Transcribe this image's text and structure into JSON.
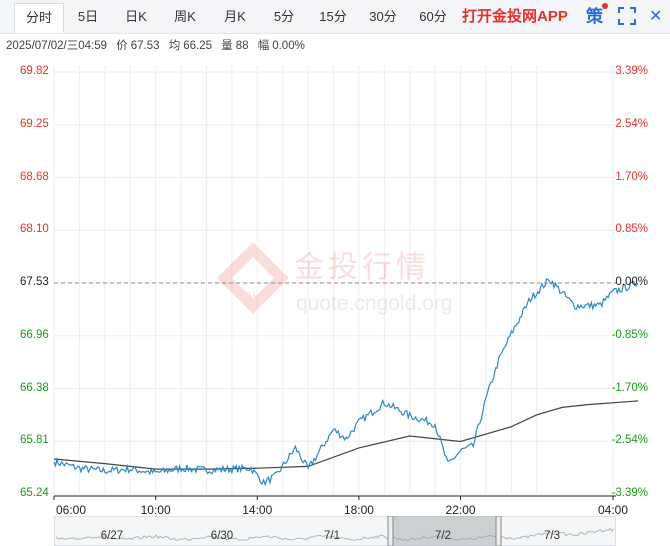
{
  "tabs": [
    {
      "label": "分时",
      "active": true
    },
    {
      "label": "5日"
    },
    {
      "label": "日K"
    },
    {
      "label": "周K"
    },
    {
      "label": "月K"
    },
    {
      "label": "5分"
    },
    {
      "label": "15分"
    },
    {
      "label": "30分"
    },
    {
      "label": "60分"
    }
  ],
  "promo": "打开金投网APP",
  "strategy_label": "策",
  "close_label": "✕",
  "info": {
    "datetime": "2025/07/02/三04:59",
    "price_label": "价",
    "price": "67.53",
    "avg_label": "均",
    "avg": "66.25",
    "vol_label": "量",
    "vol": "88",
    "amp_label": "幅",
    "amp": "0.00%"
  },
  "watermark": {
    "name": "金投行情",
    "url": "quote.cngold.org",
    "badge": "AU"
  },
  "colors": {
    "up": "#e8302a",
    "down": "#1a9a1a",
    "neutral": "#222222",
    "price_line": "#2a88c8",
    "avg_line": "#444444",
    "grid": "#eeeeee"
  },
  "chart_data": {
    "type": "line",
    "x_start": "06:00",
    "x_end": "04:59",
    "xticks": [
      "06:00",
      "10:00",
      "14:00",
      "18:00",
      "22:00",
      "04:00"
    ],
    "ylim": [
      65.24,
      69.82
    ],
    "yticks": [
      "69.82",
      "69.25",
      "68.68",
      "68.10",
      "67.53",
      "66.96",
      "66.38",
      "65.81",
      "65.24"
    ],
    "pct_ticks": [
      "3.39%",
      "2.54%",
      "1.70%",
      "0.85%",
      "0.00%",
      "-0.85%",
      "-1.70%",
      "-2.54%",
      "-3.39%"
    ],
    "reference": 67.53,
    "series": [
      {
        "points": [
          [
            "06:00",
            65.59
          ],
          [
            "07:00",
            65.52
          ],
          [
            "08:00",
            65.49
          ],
          [
            "09:00",
            65.51
          ],
          [
            "10:00",
            65.47
          ],
          [
            "11:00",
            65.52
          ],
          [
            "12:00",
            65.5
          ],
          [
            "13:00",
            65.51
          ],
          [
            "13:45",
            65.52
          ],
          [
            "14:15",
            65.36
          ],
          [
            "14:45",
            65.44
          ],
          [
            "15:30",
            65.74
          ],
          [
            "16:00",
            65.51
          ],
          [
            "17:00",
            65.94
          ],
          [
            "17:30",
            65.84
          ],
          [
            "18:00",
            66.02
          ],
          [
            "19:00",
            66.23
          ],
          [
            "20:00",
            66.09
          ],
          [
            "21:00",
            66.0
          ],
          [
            "21:30",
            65.56
          ],
          [
            "22:00",
            65.71
          ],
          [
            "22:30",
            65.76
          ],
          [
            "23:00",
            66.27
          ],
          [
            "23:30",
            66.69
          ],
          [
            "00:00",
            66.98
          ],
          [
            "00:45",
            67.36
          ],
          [
            "01:30",
            67.57
          ],
          [
            "02:30",
            67.28
          ],
          [
            "03:30",
            67.29
          ],
          [
            "04:00",
            67.43
          ],
          [
            "04:59",
            67.53
          ]
        ]
      },
      {
        "points": [
          [
            "06:00",
            65.62
          ],
          [
            "08:00",
            65.57
          ],
          [
            "10:00",
            65.51
          ],
          [
            "12:00",
            65.51
          ],
          [
            "14:00",
            65.52
          ],
          [
            "16:00",
            65.54
          ],
          [
            "18:00",
            65.74
          ],
          [
            "20:00",
            65.87
          ],
          [
            "22:00",
            65.81
          ],
          [
            "00:00",
            65.97
          ],
          [
            "01:00",
            66.1
          ],
          [
            "02:00",
            66.18
          ],
          [
            "03:00",
            66.21
          ],
          [
            "04:59",
            66.25
          ]
        ]
      }
    ]
  },
  "navigator": {
    "labels": [
      "6/27",
      "6/30",
      "7/1",
      "7/2",
      "7/3"
    ]
  }
}
